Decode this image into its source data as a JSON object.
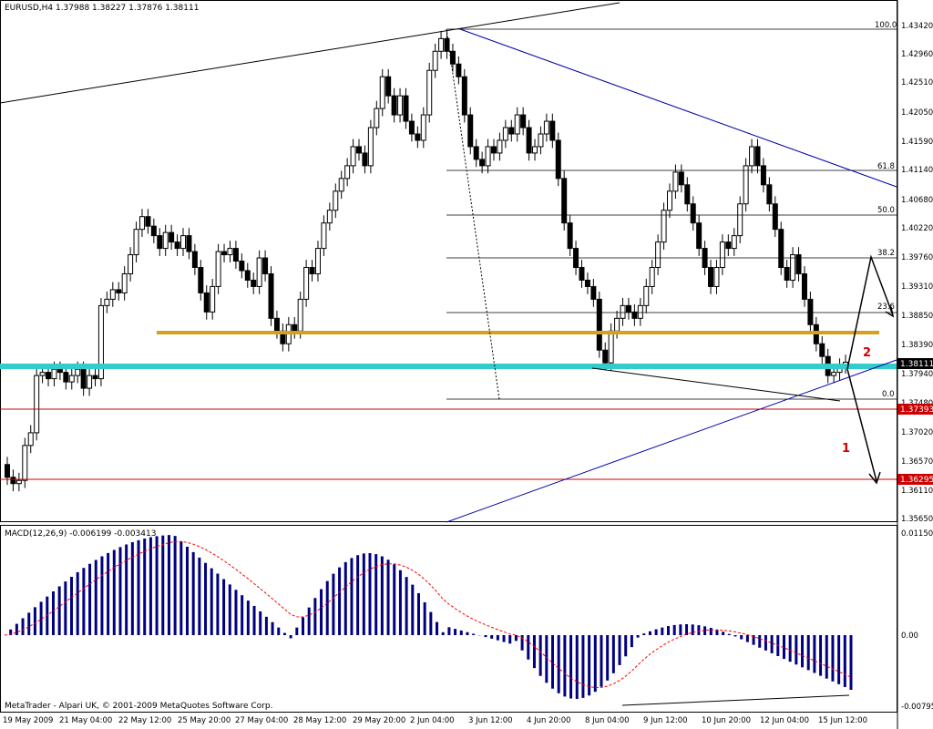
{
  "window": {
    "symbol_info": "EURUSD,H4  1.37988 1.38227 1.37876 1.38111",
    "macd_info": "MACD(12,26,9) -0.006199 -0.003413",
    "copyright": "MetaTrader - Alpari UK, © 2001-2009 MetaQuotes Software Corp."
  },
  "price_axis": {
    "labels": [
      "1.43420",
      "1.42960",
      "1.42510",
      "1.42050",
      "1.41590",
      "1.41140",
      "1.40680",
      "1.40220",
      "1.39760",
      "1.39310",
      "1.38850",
      "1.38390",
      "1.37940",
      "1.37480",
      "1.37020",
      "1.36570",
      "1.36110",
      "1.35650"
    ],
    "current_price": "1.38111",
    "red_level_1": "1.37393",
    "red_level_2": "1.36295"
  },
  "macd_axis": {
    "top": "0.011504",
    "zero": "0.00",
    "bottom": "-0.007957"
  },
  "time_axis": {
    "labels": [
      "19 May 2009",
      "21 May 04:00",
      "22 May 12:00",
      "25 May 20:00",
      "27 May 04:00",
      "28 May 12:00",
      "29 May 20:00",
      "2 Jun 04:00",
      "3 Jun 12:00",
      "4 Jun 20:00",
      "8 Jun 04:00",
      "9 Jun 12:00",
      "10 Jun 20:00",
      "12 Jun 04:00",
      "15 Jun 12:00"
    ]
  },
  "fibonacci": {
    "levels": [
      {
        "label": "100.0"
      },
      {
        "label": "61.8"
      },
      {
        "label": "50.0"
      },
      {
        "label": "38.2"
      },
      {
        "label": "23.6"
      },
      {
        "label": "0.0"
      }
    ]
  },
  "annotations": {
    "mark_1": "1",
    "mark_2": "2"
  },
  "colors": {
    "bull_candle": "#ffffff",
    "bear_candle": "#000000",
    "macd_bar": "#000080",
    "signal_line": "#ff0000",
    "horizontal_cyan": "#33cccc",
    "horizontal_gold": "#d4a020",
    "red_level": "#cc0000",
    "trend_blue": "#0000aa"
  }
}
